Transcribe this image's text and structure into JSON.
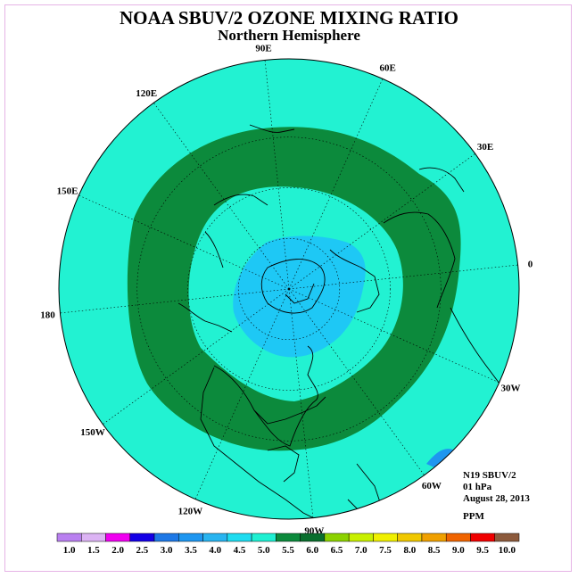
{
  "title": "NOAA SBUV/2 OZONE MIXING RATIO",
  "subtitle": "Northern Hemisphere",
  "longitude_labels": [
    "90E",
    "60E",
    "30E",
    "0",
    "30W",
    "60W",
    "90W",
    "120W",
    "150W",
    "180",
    "150E",
    "120E"
  ],
  "info": {
    "instrument": "N19 SBUV/2",
    "level": "01 hPa",
    "date": "August 28, 2013",
    "units": "PPM"
  },
  "colorbar": {
    "labels": [
      "1.0",
      "1.5",
      "2.0",
      "2.5",
      "3.0",
      "3.5",
      "4.0",
      "4.5",
      "5.0",
      "5.5",
      "6.0",
      "6.5",
      "7.0",
      "7.5",
      "8.0",
      "8.5",
      "9.0",
      "9.5",
      "10.0"
    ],
    "colors": [
      "#b980f0",
      "#dcb4f4",
      "#f000f0",
      "#1400e6",
      "#1e78e6",
      "#1e96f0",
      "#28b4f0",
      "#1edcf0",
      "#1ef0d2",
      "#0c8a3c",
      "#0a6e2e",
      "#8cd200",
      "#c8f000",
      "#f0f000",
      "#f0c800",
      "#f0a000",
      "#f06400",
      "#f00000",
      "#8c5a3c"
    ]
  },
  "colors": {
    "background_field": "#22f2d2",
    "mid_ring": "#0c8a3c",
    "polar_low": "#1ec8f5",
    "polar_core": "#1e96f0"
  }
}
